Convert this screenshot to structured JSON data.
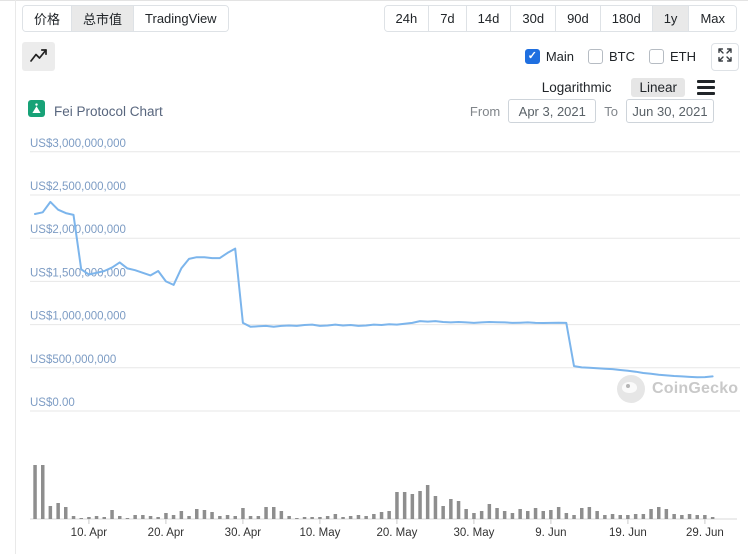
{
  "header": {
    "chart_tabs": [
      {
        "label": "价格",
        "active": false
      },
      {
        "label": "总市值",
        "active": true
      },
      {
        "label": "TradingView",
        "active": false
      }
    ],
    "range_tabs": [
      {
        "label": "24h",
        "active": false
      },
      {
        "label": "7d",
        "active": false
      },
      {
        "label": "14d",
        "active": false
      },
      {
        "label": "30d",
        "active": false
      },
      {
        "label": "90d",
        "active": false
      },
      {
        "label": "180d",
        "active": false
      },
      {
        "label": "1y",
        "active": true
      },
      {
        "label": "Max",
        "active": false
      }
    ]
  },
  "controls": {
    "overlays": [
      {
        "label": "Main",
        "checked": true,
        "checkmark": "✓"
      },
      {
        "label": "BTC",
        "checked": false,
        "checkmark": ""
      },
      {
        "label": "ETH",
        "checked": false,
        "checkmark": ""
      }
    ],
    "scale_options": [
      {
        "label": "Logarithmic",
        "active": false
      },
      {
        "label": "Linear",
        "active": true
      }
    ],
    "from_label": "From",
    "to_label": "To",
    "date_from": "Apr 3, 2021",
    "date_to": "Jun 30, 2021"
  },
  "title": {
    "text": "Fei Protocol Chart"
  },
  "watermark_text": "CoinGecko",
  "chart_data": {
    "type": "line",
    "title": "Fei Protocol Chart",
    "start_date": "2021-04-03",
    "end_date": "2021-06-30",
    "interval_days": 1,
    "grid": true,
    "legend": false,
    "ylim_millions_usd": [
      0,
      3000
    ],
    "y_axis": {
      "tick_labels": [
        "US$3,000,000,000",
        "US$2,500,000,000",
        "US$2,000,000,000",
        "US$1,500,000,000",
        "US$1,000,000,000",
        "US$500,000,000",
        "US$0.00"
      ],
      "tick_values_millions": [
        3000,
        2500,
        2000,
        1500,
        1000,
        500,
        0
      ]
    },
    "x_axis": {
      "tick_labels": [
        "10. Apr",
        "20. Apr",
        "30. Apr",
        "10. May",
        "20. May",
        "30. May",
        "9. Jun",
        "19. Jun",
        "29. Jun"
      ],
      "tick_day_indices": [
        7,
        17,
        27,
        37,
        47,
        57,
        67,
        77,
        87
      ]
    },
    "series": [
      {
        "name": "Market Cap (US$ millions)",
        "type": "line",
        "color": "#7cb5ec",
        "values": [
          2280,
          2300,
          2420,
          2330,
          2290,
          2270,
          1640,
          1580,
          1600,
          1620,
          1660,
          1720,
          1650,
          1630,
          1600,
          1570,
          1620,
          1500,
          1460,
          1650,
          1760,
          1780,
          1780,
          1770,
          1770,
          1830,
          1880,
          1020,
          975,
          980,
          985,
          975,
          985,
          990,
          985,
          995,
          1000,
          985,
          990,
          1000,
          990,
          995,
          985,
          990,
          1000,
          995,
          1005,
          1000,
          1010,
          1020,
          1040,
          1035,
          1040,
          1030,
          1025,
          1030,
          1025,
          1020,
          1025,
          1030,
          1028,
          1025,
          1020,
          1022,
          1025,
          1020,
          1018,
          1020,
          1022,
          1020,
          520,
          505,
          500,
          495,
          490,
          485,
          475,
          465,
          455,
          440,
          430,
          420,
          412,
          405,
          400,
          395,
          390,
          392,
          400
        ]
      },
      {
        "name": "24h Volume (relative height)",
        "type": "bar",
        "color": "#8e8e8e",
        "values": [
          54,
          54,
          13,
          16,
          12,
          3,
          1,
          2,
          3,
          2,
          9,
          3,
          1,
          4,
          4,
          3,
          2,
          6,
          4,
          8,
          3,
          10,
          9,
          7,
          3,
          4,
          3,
          11,
          3,
          3,
          12,
          12,
          8,
          3,
          1,
          2,
          2,
          2,
          3,
          5,
          2,
          3,
          4,
          3,
          5,
          7,
          8,
          27,
          27,
          25,
          28,
          34,
          23,
          13,
          20,
          18,
          10,
          6,
          8,
          15,
          11,
          8,
          6,
          10,
          8,
          11,
          8,
          9,
          12,
          6,
          4,
          11,
          12,
          8,
          4,
          5,
          4,
          4,
          5,
          5,
          10,
          12,
          10,
          5,
          4,
          5,
          4,
          4,
          2
        ]
      }
    ]
  }
}
